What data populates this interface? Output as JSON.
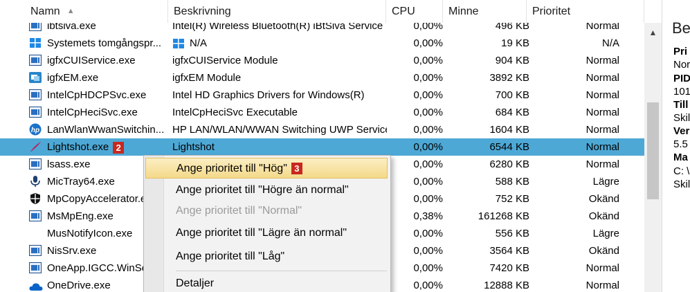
{
  "header": {
    "columns": [
      "Namn",
      "Beskrivning",
      "CPU",
      "Minne",
      "Prioritet"
    ],
    "sort_icon": "sort-ascending-icon"
  },
  "rows": [
    {
      "name": "ibtsiva.exe",
      "desc": "Intel(R) Wireless Bluetooth(R) iBtSiva Service",
      "cpu": "0,00%",
      "mem": "496 KB",
      "prio": "Normal",
      "icon": "window-icon"
    },
    {
      "name": "Systemets tomgångspr...",
      "desc": "N/A",
      "cpu": "0,00%",
      "mem": "19 KB",
      "prio": "N/A",
      "icon": "windows-logo-icon"
    },
    {
      "name": "igfxCUIService.exe",
      "desc": "igfxCUIService Module",
      "cpu": "0,00%",
      "mem": "904 KB",
      "prio": "Normal",
      "icon": "window-icon"
    },
    {
      "name": "igfxEM.exe",
      "desc": "igfxEM Module",
      "cpu": "0,00%",
      "mem": "3892 KB",
      "prio": "Normal",
      "icon": "intel-graphics-icon"
    },
    {
      "name": "IntelCpHDCPSvc.exe",
      "desc": "Intel HD Graphics Drivers for Windows(R)",
      "cpu": "0,00%",
      "mem": "700 KB",
      "prio": "Normal",
      "icon": "window-icon"
    },
    {
      "name": "IntelCpHeciSvc.exe",
      "desc": "IntelCpHeciSvc Executable",
      "cpu": "0,00%",
      "mem": "684 KB",
      "prio": "Normal",
      "icon": "window-icon"
    },
    {
      "name": "LanWlanWwanSwitchin...",
      "desc": "HP LAN/WLAN/WWAN Switching UWP Service",
      "cpu": "0,00%",
      "mem": "1604 KB",
      "prio": "Normal",
      "icon": "hp-logo-icon"
    },
    {
      "name": "Lightshot.exe",
      "desc": "Lightshot",
      "cpu": "0,00%",
      "mem": "6544 KB",
      "prio": "Normal",
      "icon": "feather-icon",
      "badge": "2"
    },
    {
      "name": "lsass.exe",
      "desc": "",
      "cpu": "0,00%",
      "mem": "6280 KB",
      "prio": "Normal",
      "icon": "window-icon"
    },
    {
      "name": "MicTray64.exe",
      "desc": "",
      "cpu": "0,00%",
      "mem": "588 KB",
      "prio": "Lägre",
      "icon": "microphone-icon"
    },
    {
      "name": "MpCopyAccelerator.e",
      "desc": "",
      "cpu": "0,00%",
      "mem": "752 KB",
      "prio": "Okänd",
      "icon": "shield-icon"
    },
    {
      "name": "MsMpEng.exe",
      "desc": "",
      "cpu": "0,38%",
      "mem": "161268 KB",
      "prio": "Okänd",
      "icon": "window-icon"
    },
    {
      "name": "MusNotifyIcon.exe",
      "desc": "",
      "cpu": "0,00%",
      "mem": "556 KB",
      "prio": "Lägre",
      "icon": ""
    },
    {
      "name": "NisSrv.exe",
      "desc": "",
      "cpu": "0,00%",
      "mem": "3564 KB",
      "prio": "Okänd",
      "icon": "window-icon"
    },
    {
      "name": "OneApp.IGCC.WinSe",
      "desc": "",
      "cpu": "0,00%",
      "mem": "7420 KB",
      "prio": "Normal",
      "icon": "window-icon"
    },
    {
      "name": "OneDrive.exe",
      "desc": "",
      "cpu": "0,00%",
      "mem": "12888 KB",
      "prio": "Normal",
      "icon": "cloud-icon"
    }
  ],
  "context_menu": {
    "items": [
      {
        "label": "Ange prioritet till \"Hög\"",
        "badge": "3",
        "state": "highlighted"
      },
      {
        "label": "Ange prioritet till \"Högre än normal\"",
        "state": "normal"
      },
      {
        "label": "Ange prioritet till \"Normal\"",
        "state": "disabled"
      },
      {
        "label": "Ange prioritet till \"Lägre än normal\"",
        "state": "normal"
      },
      {
        "label": "Ange prioritet till \"Låg\"",
        "state": "normal"
      },
      {
        "label": "Detaljer",
        "state": "normal"
      }
    ]
  },
  "right_panel": {
    "title": "Be",
    "lines": [
      "Pri",
      "Nor",
      "PID",
      "101",
      "Till",
      "Skil",
      "Ver",
      "5.5",
      "Ma",
      "C: \\",
      "Skil"
    ]
  },
  "colors": {
    "selection": "#4da8d5",
    "badge": "#c8281e",
    "menu_highlight": "#f4d98a"
  }
}
